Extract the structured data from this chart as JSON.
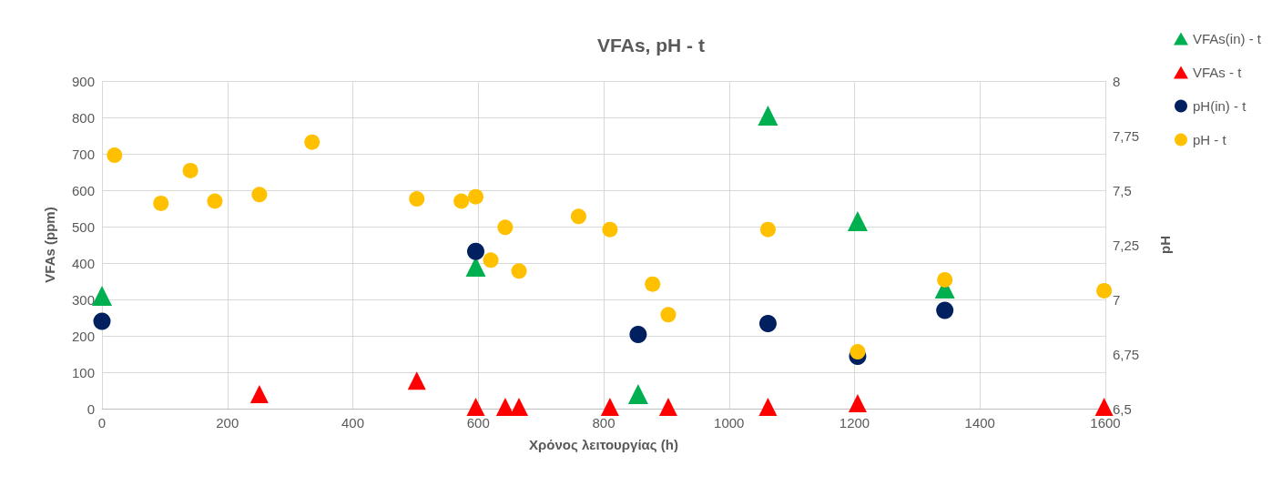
{
  "chart_data": {
    "type": "scatter",
    "title": "VFAs, pH - t",
    "xlabel": "Χρόνος λειτουργίας (h)",
    "ylabel": "VFAs (ppm)",
    "y2label": "pH",
    "xlim": [
      0,
      1600
    ],
    "xticks": [
      0,
      200,
      400,
      600,
      800,
      1000,
      1200,
      1400,
      1600
    ],
    "ylim": [
      0,
      900
    ],
    "yticks": [
      0,
      100,
      200,
      300,
      400,
      500,
      600,
      700,
      800,
      900
    ],
    "y2lim": [
      6.5,
      8
    ],
    "y2ticks": [
      {
        "value": 6.5,
        "label": "6,5"
      },
      {
        "value": 6.75,
        "label": "6,75"
      },
      7,
      {
        "value": 7.25,
        "label": "7,25"
      },
      {
        "value": 7.5,
        "label": "7,5"
      },
      {
        "value": 7.75,
        "label": "7,75"
      },
      8
    ],
    "grid": true,
    "legend": "top right",
    "series": [
      {
        "name": "VFAs(in) - t",
        "color": "#00b050",
        "marker": "triangle",
        "x": [
          0,
          596,
          855,
          1062,
          1205,
          1344
        ],
        "values": [
          305,
          385,
          35,
          800,
          510,
          325
        ]
      },
      {
        "name": "VFAs - t",
        "color": "#ff0000",
        "marker": "triangle",
        "x": [
          251,
          502,
          596,
          643,
          665,
          810,
          903,
          1062,
          1205,
          1598
        ],
        "values": [
          35,
          72,
          0,
          0,
          0,
          0,
          0,
          0,
          10,
          0
        ]
      },
      {
        "name": "pH(in) - t",
        "color": "#002060",
        "marker": "circle",
        "axis": "y2",
        "x": [
          0,
          596,
          855,
          1062,
          1205,
          1344
        ],
        "values": [
          6.9,
          7.22,
          6.84,
          6.89,
          6.74,
          6.95
        ]
      },
      {
        "name": "pH - t",
        "color": "#ffc000",
        "marker": "circle",
        "axis": "y2",
        "x": [
          20,
          94,
          141,
          180,
          251,
          335,
          502,
          573,
          596,
          620,
          643,
          665,
          760,
          810,
          878,
          903,
          1062,
          1205,
          1344,
          1598
        ],
        "values": [
          7.66,
          7.44,
          7.59,
          7.45,
          7.48,
          7.72,
          7.46,
          7.45,
          7.47,
          7.18,
          7.33,
          7.13,
          7.38,
          7.32,
          7.07,
          6.93,
          7.32,
          6.76,
          7.09,
          7.04
        ]
      }
    ]
  }
}
